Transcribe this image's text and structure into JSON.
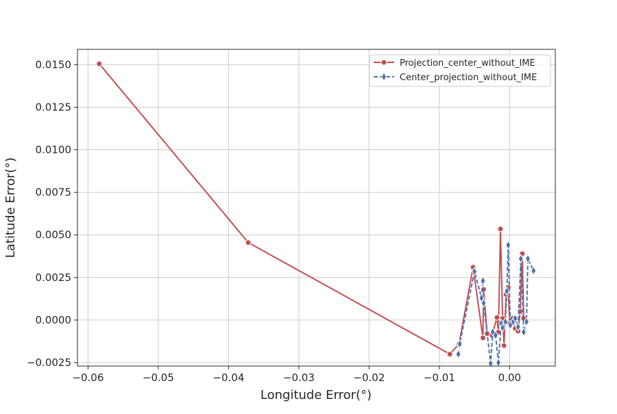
{
  "chart_data": {
    "type": "line",
    "xlabel": "Longitude Error(°)",
    "ylabel": "Latitude Error(°)",
    "xlim": [
      -0.0615,
      0.0065
    ],
    "ylim": [
      -0.0027,
      0.0159
    ],
    "grid": true,
    "legend_position": "top-right",
    "xticks": [
      -0.06,
      -0.05,
      -0.04,
      -0.03,
      -0.02,
      -0.01,
      0.0
    ],
    "xtick_labels": [
      "−0.06",
      "−0.05",
      "−0.04",
      "−0.03",
      "−0.02",
      "−0.01",
      "0.00"
    ],
    "yticks": [
      -0.0025,
      0.0,
      0.0025,
      0.005,
      0.0075,
      0.01,
      0.0125,
      0.015
    ],
    "ytick_labels": [
      "−0.0025",
      "0.0000",
      "0.0025",
      "0.0050",
      "0.0075",
      "0.0100",
      "0.0125",
      "0.0150"
    ],
    "series": [
      {
        "name": "Projection_center_without_IME",
        "color": "#c44e52",
        "line_style": "solid",
        "marker": "circle",
        "points": [
          [
            -0.0584,
            0.01505
          ],
          [
            -0.0372,
            0.00455
          ],
          [
            -0.0085,
            -0.002
          ],
          [
            -0.0072,
            -0.0014
          ],
          [
            -0.0052,
            0.0031
          ],
          [
            -0.0038,
            -0.00105
          ],
          [
            -0.0037,
            0.0018
          ],
          [
            -0.0032,
            -0.0008
          ],
          [
            -0.0025,
            -0.0009
          ],
          [
            -0.0018,
            0.00015
          ],
          [
            -0.0016,
            -0.0007
          ],
          [
            -0.0013,
            0.00535
          ],
          [
            -0.001,
            0.0001
          ],
          [
            -0.0008,
            -0.0015
          ],
          [
            -0.0005,
            0.0015
          ],
          [
            -0.0002,
            0.0019
          ],
          [
            0.0,
            -0.0002
          ],
          [
            0.0004,
            0.0001
          ],
          [
            0.0008,
            -0.0005
          ],
          [
            0.0012,
            -0.00065
          ],
          [
            0.0015,
            0.0005
          ],
          [
            0.0018,
            0.0039
          ],
          [
            0.002,
            0.0001
          ]
        ]
      },
      {
        "name": "Center_projection_without_IME",
        "color": "#4c72b0",
        "line_style": "dashed",
        "marker": "diamond",
        "points": [
          [
            -0.0073,
            -0.002
          ],
          [
            -0.0071,
            -0.0014
          ],
          [
            -0.005,
            0.00285
          ],
          [
            -0.004,
            0.0013
          ],
          [
            -0.0038,
            0.0023
          ],
          [
            -0.0037,
            0.001
          ],
          [
            -0.0027,
            -0.00255
          ],
          [
            -0.0024,
            -0.0007
          ],
          [
            -0.002,
            -0.0009
          ],
          [
            -0.0016,
            -0.0025
          ],
          [
            -0.0012,
            -0.0002
          ],
          [
            -0.001,
            -0.00045
          ],
          [
            -0.0006,
            -0.0001
          ],
          [
            -0.0004,
            0.0017
          ],
          [
            -0.0002,
            0.0044
          ],
          [
            0.0001,
            -0.0003
          ],
          [
            0.0005,
            -0.0001
          ],
          [
            0.0008,
            0.0001
          ],
          [
            0.0012,
            -0.0004
          ],
          [
            0.0016,
            0.0036
          ],
          [
            0.002,
            -0.0007
          ],
          [
            0.0024,
            -0.0001
          ],
          [
            0.0026,
            0.0036
          ],
          [
            0.0034,
            0.0029
          ]
        ]
      }
    ]
  }
}
